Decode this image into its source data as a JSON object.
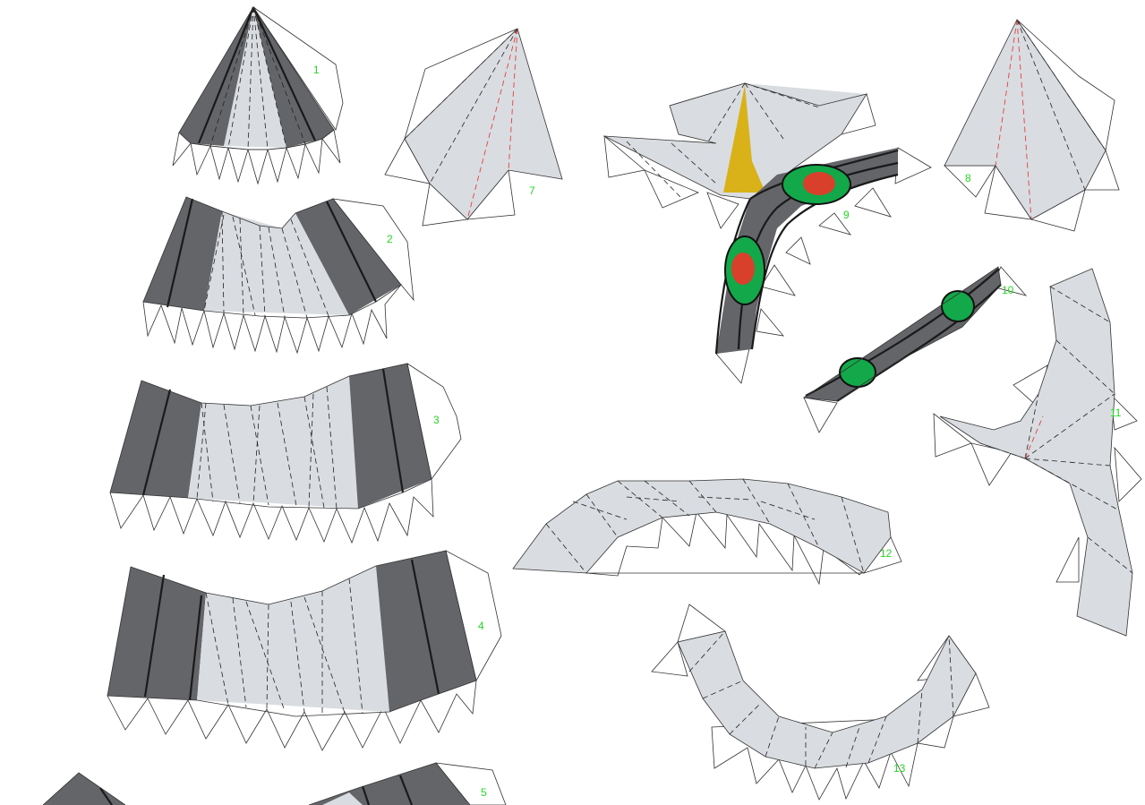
{
  "pieces": [
    {
      "label": "1"
    },
    {
      "label": "2"
    },
    {
      "label": "3"
    },
    {
      "label": "4"
    },
    {
      "label": "5"
    },
    {
      "label": "7"
    },
    {
      "label": "8"
    },
    {
      "label": "9"
    },
    {
      "label": "10"
    },
    {
      "label": "11"
    },
    {
      "label": "12"
    },
    {
      "label": "13"
    }
  ],
  "colors": {
    "panel_light": "#d9dce0",
    "panel_dark": "#636569",
    "stripe": "#1a1a1a",
    "label_green": "#22dd22",
    "eye_green": "#13a84a",
    "eye_red": "#d8402c",
    "yellow": "#d9b21a"
  }
}
